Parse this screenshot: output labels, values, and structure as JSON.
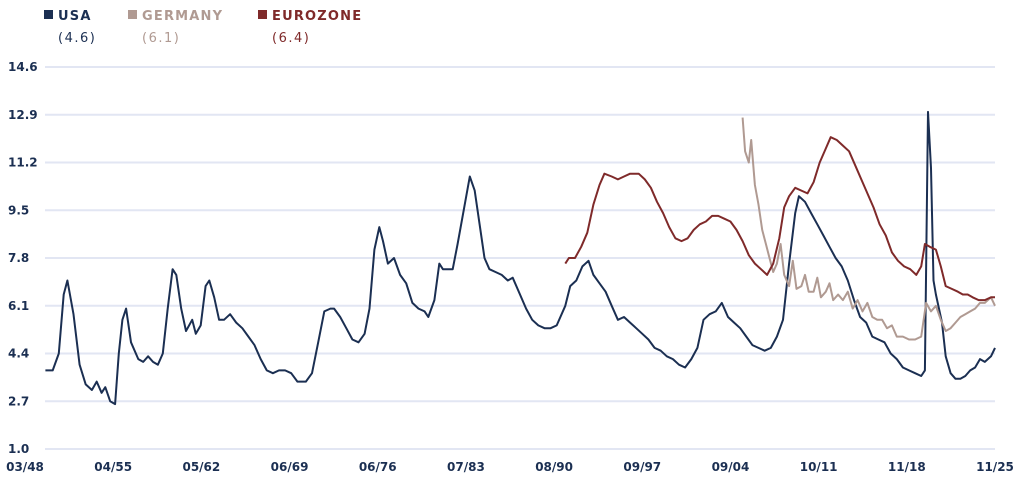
{
  "chart_data": {
    "type": "line",
    "title": "",
    "xlabel": "",
    "ylabel": "",
    "xlim": [
      1948.17,
      2025.83
    ],
    "ylim": [
      1.0,
      14.6
    ],
    "grid": true,
    "legend_position": "top-left",
    "y_ticks": [
      "1.0",
      "2.7",
      "4.4",
      "6.1",
      "7.8",
      "9.5",
      "11.2",
      "12.9",
      "14.6"
    ],
    "x_ticks": [
      "03/48",
      "04/55",
      "05/62",
      "06/69",
      "06/76",
      "07/83",
      "08/90",
      "09/97",
      "09/04",
      "10/11",
      "11/18",
      "11/25"
    ],
    "series": [
      {
        "name": "USA",
        "latest": "(4.6)",
        "color": "#1b2f52",
        "points": [
          [
            1948.2,
            3.8
          ],
          [
            1948.8,
            3.8
          ],
          [
            1949.3,
            4.4
          ],
          [
            1949.7,
            6.5
          ],
          [
            1950.0,
            7.0
          ],
          [
            1950.5,
            5.8
          ],
          [
            1951.0,
            4.0
          ],
          [
            1951.5,
            3.3
          ],
          [
            1952.0,
            3.1
          ],
          [
            1952.4,
            3.4
          ],
          [
            1952.8,
            3.0
          ],
          [
            1953.1,
            3.2
          ],
          [
            1953.5,
            2.7
          ],
          [
            1953.9,
            2.6
          ],
          [
            1954.2,
            4.4
          ],
          [
            1954.5,
            5.6
          ],
          [
            1954.8,
            6.0
          ],
          [
            1955.2,
            4.8
          ],
          [
            1955.8,
            4.2
          ],
          [
            1956.2,
            4.1
          ],
          [
            1956.6,
            4.3
          ],
          [
            1957.0,
            4.1
          ],
          [
            1957.4,
            4.0
          ],
          [
            1957.8,
            4.4
          ],
          [
            1958.2,
            6.0
          ],
          [
            1958.6,
            7.4
          ],
          [
            1958.9,
            7.2
          ],
          [
            1959.3,
            6.0
          ],
          [
            1959.7,
            5.2
          ],
          [
            1960.2,
            5.6
          ],
          [
            1960.5,
            5.1
          ],
          [
            1960.9,
            5.4
          ],
          [
            1961.3,
            6.8
          ],
          [
            1961.6,
            7.0
          ],
          [
            1962.0,
            6.4
          ],
          [
            1962.4,
            5.6
          ],
          [
            1962.8,
            5.6
          ],
          [
            1963.3,
            5.8
          ],
          [
            1963.8,
            5.5
          ],
          [
            1964.3,
            5.3
          ],
          [
            1964.8,
            5.0
          ],
          [
            1965.3,
            4.7
          ],
          [
            1965.8,
            4.2
          ],
          [
            1966.3,
            3.8
          ],
          [
            1966.8,
            3.7
          ],
          [
            1967.3,
            3.8
          ],
          [
            1967.8,
            3.8
          ],
          [
            1968.3,
            3.7
          ],
          [
            1968.8,
            3.4
          ],
          [
            1969.5,
            3.4
          ],
          [
            1970.0,
            3.7
          ],
          [
            1970.5,
            4.8
          ],
          [
            1971.0,
            5.9
          ],
          [
            1971.5,
            6.0
          ],
          [
            1971.8,
            6.0
          ],
          [
            1972.3,
            5.7
          ],
          [
            1972.8,
            5.3
          ],
          [
            1973.3,
            4.9
          ],
          [
            1973.8,
            4.8
          ],
          [
            1974.3,
            5.1
          ],
          [
            1974.7,
            6.0
          ],
          [
            1975.1,
            8.1
          ],
          [
            1975.5,
            8.9
          ],
          [
            1975.8,
            8.4
          ],
          [
            1976.2,
            7.6
          ],
          [
            1976.7,
            7.8
          ],
          [
            1977.2,
            7.2
          ],
          [
            1977.7,
            6.9
          ],
          [
            1978.2,
            6.2
          ],
          [
            1978.7,
            6.0
          ],
          [
            1979.2,
            5.9
          ],
          [
            1979.5,
            5.7
          ],
          [
            1980.0,
            6.3
          ],
          [
            1980.4,
            7.6
          ],
          [
            1980.7,
            7.4
          ],
          [
            1981.5,
            7.4
          ],
          [
            1981.9,
            8.3
          ],
          [
            1982.4,
            9.5
          ],
          [
            1982.9,
            10.7
          ],
          [
            1983.3,
            10.2
          ],
          [
            1983.7,
            9.0
          ],
          [
            1984.1,
            7.8
          ],
          [
            1984.5,
            7.4
          ],
          [
            1985.0,
            7.3
          ],
          [
            1985.5,
            7.2
          ],
          [
            1986.0,
            7.0
          ],
          [
            1986.4,
            7.1
          ],
          [
            1987.0,
            6.5
          ],
          [
            1987.5,
            6.0
          ],
          [
            1988.0,
            5.6
          ],
          [
            1988.5,
            5.4
          ],
          [
            1989.0,
            5.3
          ],
          [
            1989.5,
            5.3
          ],
          [
            1990.0,
            5.4
          ],
          [
            1990.7,
            6.1
          ],
          [
            1991.1,
            6.8
          ],
          [
            1991.6,
            7.0
          ],
          [
            1992.1,
            7.5
          ],
          [
            1992.6,
            7.7
          ],
          [
            1993.0,
            7.2
          ],
          [
            1993.5,
            6.9
          ],
          [
            1994.0,
            6.6
          ],
          [
            1994.5,
            6.1
          ],
          [
            1995.0,
            5.6
          ],
          [
            1995.5,
            5.7
          ],
          [
            1996.0,
            5.5
          ],
          [
            1996.5,
            5.3
          ],
          [
            1997.0,
            5.1
          ],
          [
            1997.5,
            4.9
          ],
          [
            1998.0,
            4.6
          ],
          [
            1998.5,
            4.5
          ],
          [
            1999.0,
            4.3
          ],
          [
            1999.5,
            4.2
          ],
          [
            2000.0,
            4.0
          ],
          [
            2000.5,
            3.9
          ],
          [
            2001.0,
            4.2
          ],
          [
            2001.5,
            4.6
          ],
          [
            2002.0,
            5.6
          ],
          [
            2002.5,
            5.8
          ],
          [
            2003.0,
            5.9
          ],
          [
            2003.5,
            6.2
          ],
          [
            2004.0,
            5.7
          ],
          [
            2004.5,
            5.5
          ],
          [
            2005.0,
            5.3
          ],
          [
            2005.5,
            5.0
          ],
          [
            2006.0,
            4.7
          ],
          [
            2006.5,
            4.6
          ],
          [
            2007.0,
            4.5
          ],
          [
            2007.5,
            4.6
          ],
          [
            2008.0,
            5.0
          ],
          [
            2008.5,
            5.6
          ],
          [
            2009.0,
            7.6
          ],
          [
            2009.5,
            9.4
          ],
          [
            2009.8,
            10.0
          ],
          [
            2010.3,
            9.8
          ],
          [
            2010.8,
            9.4
          ],
          [
            2011.3,
            9.0
          ],
          [
            2011.8,
            8.6
          ],
          [
            2012.3,
            8.2
          ],
          [
            2012.8,
            7.8
          ],
          [
            2013.3,
            7.5
          ],
          [
            2013.8,
            7.0
          ],
          [
            2014.3,
            6.3
          ],
          [
            2014.8,
            5.7
          ],
          [
            2015.3,
            5.5
          ],
          [
            2015.8,
            5.0
          ],
          [
            2016.3,
            4.9
          ],
          [
            2016.8,
            4.8
          ],
          [
            2017.3,
            4.4
          ],
          [
            2017.8,
            4.2
          ],
          [
            2018.3,
            3.9
          ],
          [
            2018.8,
            3.8
          ],
          [
            2019.3,
            3.7
          ],
          [
            2019.8,
            3.6
          ],
          [
            2020.1,
            3.8
          ],
          [
            2020.35,
            13.0
          ],
          [
            2020.6,
            11.0
          ],
          [
            2020.8,
            7.0
          ],
          [
            2021.0,
            6.5
          ],
          [
            2021.5,
            5.5
          ],
          [
            2021.8,
            4.3
          ],
          [
            2022.2,
            3.7
          ],
          [
            2022.6,
            3.5
          ],
          [
            2023.0,
            3.5
          ],
          [
            2023.4,
            3.6
          ],
          [
            2023.8,
            3.8
          ],
          [
            2024.2,
            3.9
          ],
          [
            2024.6,
            4.2
          ],
          [
            2025.0,
            4.1
          ],
          [
            2025.5,
            4.3
          ],
          [
            2025.83,
            4.6
          ]
        ]
      },
      {
        "name": "GERMANY",
        "latest": "(6.1)",
        "color": "#b09a92",
        "points": [
          [
            2005.2,
            12.8
          ],
          [
            2005.4,
            11.6
          ],
          [
            2005.7,
            11.2
          ],
          [
            2005.9,
            12.0
          ],
          [
            2006.2,
            10.4
          ],
          [
            2006.5,
            9.7
          ],
          [
            2006.8,
            8.8
          ],
          [
            2007.1,
            8.3
          ],
          [
            2007.4,
            7.8
          ],
          [
            2007.7,
            7.3
          ],
          [
            2008.0,
            7.6
          ],
          [
            2008.3,
            8.3
          ],
          [
            2008.6,
            7.2
          ],
          [
            2009.0,
            6.8
          ],
          [
            2009.3,
            7.7
          ],
          [
            2009.6,
            6.7
          ],
          [
            2010.0,
            6.8
          ],
          [
            2010.3,
            7.2
          ],
          [
            2010.6,
            6.6
          ],
          [
            2011.0,
            6.6
          ],
          [
            2011.3,
            7.1
          ],
          [
            2011.6,
            6.4
          ],
          [
            2012.0,
            6.6
          ],
          [
            2012.3,
            6.9
          ],
          [
            2012.6,
            6.3
          ],
          [
            2013.0,
            6.5
          ],
          [
            2013.4,
            6.3
          ],
          [
            2013.8,
            6.6
          ],
          [
            2014.2,
            6.0
          ],
          [
            2014.6,
            6.3
          ],
          [
            2015.0,
            5.9
          ],
          [
            2015.4,
            6.2
          ],
          [
            2015.8,
            5.7
          ],
          [
            2016.2,
            5.6
          ],
          [
            2016.6,
            5.6
          ],
          [
            2017.0,
            5.3
          ],
          [
            2017.4,
            5.4
          ],
          [
            2017.8,
            5.0
          ],
          [
            2018.3,
            5.0
          ],
          [
            2018.8,
            4.9
          ],
          [
            2019.3,
            4.9
          ],
          [
            2019.8,
            5.0
          ],
          [
            2020.2,
            6.2
          ],
          [
            2020.6,
            5.9
          ],
          [
            2021.0,
            6.1
          ],
          [
            2021.4,
            5.6
          ],
          [
            2021.8,
            5.2
          ],
          [
            2022.2,
            5.3
          ],
          [
            2022.6,
            5.5
          ],
          [
            2023.0,
            5.7
          ],
          [
            2023.4,
            5.8
          ],
          [
            2023.8,
            5.9
          ],
          [
            2024.2,
            6.0
          ],
          [
            2024.6,
            6.2
          ],
          [
            2025.0,
            6.2
          ],
          [
            2025.5,
            6.4
          ],
          [
            2025.83,
            6.1
          ]
        ]
      },
      {
        "name": "EUROZONE",
        "latest": "(6.4)",
        "color": "#7f2a2a",
        "points": [
          [
            1990.7,
            7.6
          ],
          [
            1991.0,
            7.8
          ],
          [
            1991.5,
            7.8
          ],
          [
            1992.0,
            8.2
          ],
          [
            1992.5,
            8.7
          ],
          [
            1993.0,
            9.7
          ],
          [
            1993.5,
            10.4
          ],
          [
            1993.9,
            10.8
          ],
          [
            1994.5,
            10.7
          ],
          [
            1995.0,
            10.6
          ],
          [
            1995.5,
            10.7
          ],
          [
            1996.0,
            10.8
          ],
          [
            1996.7,
            10.8
          ],
          [
            1997.2,
            10.6
          ],
          [
            1997.7,
            10.3
          ],
          [
            1998.2,
            9.8
          ],
          [
            1998.7,
            9.4
          ],
          [
            1999.2,
            8.9
          ],
          [
            1999.7,
            8.5
          ],
          [
            2000.2,
            8.4
          ],
          [
            2000.7,
            8.5
          ],
          [
            2001.2,
            8.8
          ],
          [
            2001.7,
            9.0
          ],
          [
            2002.2,
            9.1
          ],
          [
            2002.7,
            9.3
          ],
          [
            2003.2,
            9.3
          ],
          [
            2003.7,
            9.2
          ],
          [
            2004.2,
            9.1
          ],
          [
            2004.7,
            8.8
          ],
          [
            2005.2,
            8.4
          ],
          [
            2005.7,
            7.9
          ],
          [
            2006.2,
            7.6
          ],
          [
            2006.7,
            7.4
          ],
          [
            2007.2,
            7.2
          ],
          [
            2007.7,
            7.6
          ],
          [
            2008.2,
            8.5
          ],
          [
            2008.6,
            9.6
          ],
          [
            2009.0,
            10.0
          ],
          [
            2009.5,
            10.3
          ],
          [
            2010.0,
            10.2
          ],
          [
            2010.5,
            10.1
          ],
          [
            2011.0,
            10.5
          ],
          [
            2011.5,
            11.2
          ],
          [
            2012.0,
            11.7
          ],
          [
            2012.4,
            12.1
          ],
          [
            2012.9,
            12.0
          ],
          [
            2013.4,
            11.8
          ],
          [
            2013.9,
            11.6
          ],
          [
            2014.4,
            11.1
          ],
          [
            2014.9,
            10.6
          ],
          [
            2015.4,
            10.1
          ],
          [
            2015.9,
            9.6
          ],
          [
            2016.4,
            9.0
          ],
          [
            2016.9,
            8.6
          ],
          [
            2017.4,
            8.0
          ],
          [
            2017.9,
            7.7
          ],
          [
            2018.4,
            7.5
          ],
          [
            2018.9,
            7.4
          ],
          [
            2019.4,
            7.2
          ],
          [
            2019.8,
            7.5
          ],
          [
            2020.1,
            8.3
          ],
          [
            2020.5,
            8.2
          ],
          [
            2021.0,
            8.1
          ],
          [
            2021.4,
            7.5
          ],
          [
            2021.8,
            6.8
          ],
          [
            2022.3,
            6.7
          ],
          [
            2022.8,
            6.6
          ],
          [
            2023.2,
            6.5
          ],
          [
            2023.6,
            6.5
          ],
          [
            2024.0,
            6.4
          ],
          [
            2024.5,
            6.3
          ],
          [
            2025.0,
            6.3
          ],
          [
            2025.5,
            6.4
          ],
          [
            2025.83,
            6.4
          ]
        ]
      }
    ]
  }
}
